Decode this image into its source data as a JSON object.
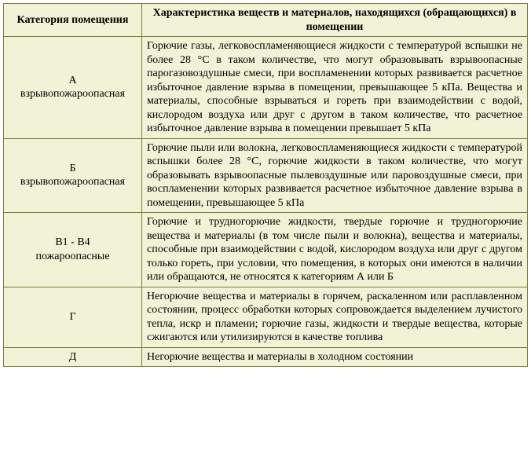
{
  "colors": {
    "row_bg": "#f1f3d6",
    "border": "#7a7a3a",
    "text": "#000000"
  },
  "table": {
    "columns": [
      "Категория помещения",
      "Характеристика веществ и материалов, находящихся (обращающихся) в помещении"
    ],
    "rows": [
      {
        "category": "А\nвзрывопожароопасная",
        "description": "Горючие газы, легковоспламеняющиеся жидкости с температурой вспышки не более 28 °С в таком количестве, что могут образовывать взрывоопасные парогазовоздушные смеси, при воспламенении которых развивается расчетное избыточное давление взрыва в помещении, превышающее 5 кПа. Вещества и материалы, способные взрываться и гореть при взаимодействии с водой, кислородом воздуха или друг с другом в таком количестве, что расчетное избыточное давление взрыва в помещении превышает 5 кПа"
      },
      {
        "category": "Б\nвзрывопожароопасная",
        "description": "Горючие пыли или волокна, легковоспламеняющиеся жидкости с температурой вспышки более 28 °С, горючие жидкости в таком количестве, что могут образовывать взрывоопасные пылевоздушные или паровоздушные смеси, при воспламенении которых развивается расчетное избыточное давление взрыва в помещении, превышающее 5 кПа"
      },
      {
        "category": "В1 - В4\nпожароопасные",
        "description": "Горючие и трудногорючие жидкости, твердые горючие и трудногорючие вещества и материалы (в том числе пыли и волокна), вещества и материалы, способные при взаимодействии с водой, кислородом воздуха или друг с другом только гореть, при условии, что помещения, в которых они имеются в наличии или обращаются, не относятся к категориям А или Б"
      },
      {
        "category": "Г",
        "description": "Негорючие вещества и материалы в горячем, раскаленном или расплавленном состоянии, процесс обработки которых сопровождается выделением лучистого тепла, искр и пламени; горючие газы, жидкости и твердые вещества, которые сжигаются или утилизируются в качестве топлива"
      },
      {
        "category": "Д",
        "description": "Негорючие вещества и материалы в холодном состоянии"
      }
    ]
  }
}
